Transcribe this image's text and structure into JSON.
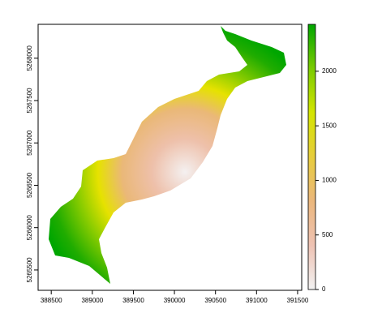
{
  "chart_data": {
    "type": "raster",
    "xlim": [
      388340,
      391550
    ],
    "xticks": [
      388500,
      389000,
      389500,
      390000,
      390500,
      391000,
      391500
    ],
    "ylim": [
      5265260,
      5268400
    ],
    "yticks": [
      5265500,
      5266000,
      5266500,
      5267000,
      5267500,
      5268000
    ],
    "colorbar": {
      "lim": [
        0,
        2430
      ],
      "ticks": [
        0,
        500,
        1000,
        1500,
        2000
      ],
      "colors": [
        "#F2F2F2",
        "#EEC2B3",
        "#EBB77C",
        "#E7CD3C",
        "#D4E500",
        "#7ACB00",
        "#00A600"
      ]
    }
  }
}
